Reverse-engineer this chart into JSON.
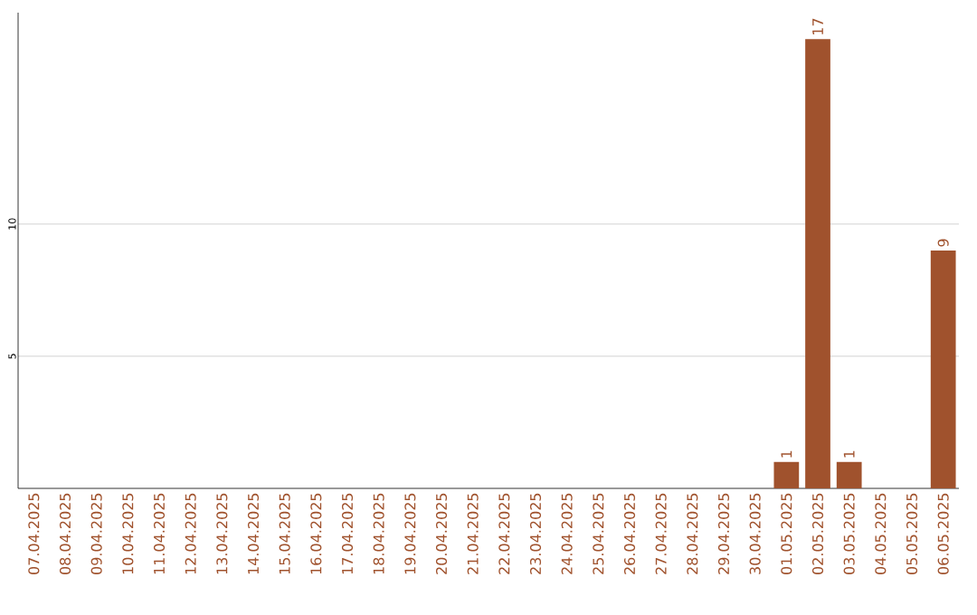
{
  "chart_data": {
    "type": "bar",
    "categories": [
      "07.04.2025",
      "08.04.2025",
      "09.04.2025",
      "10.04.2025",
      "11.04.2025",
      "12.04.2025",
      "13.04.2025",
      "14.04.2025",
      "15.04.2025",
      "16.04.2025",
      "17.04.2025",
      "18.04.2025",
      "19.04.2025",
      "20.04.2025",
      "21.04.2025",
      "22.04.2025",
      "23.04.2025",
      "24.04.2025",
      "25.04.2025",
      "26.04.2025",
      "27.04.2025",
      "28.04.2025",
      "29.04.2025",
      "30.04.2025",
      "01.05.2025",
      "02.05.2025",
      "03.05.2025",
      "04.05.2025",
      "05.05.2025",
      "06.05.2025"
    ],
    "values": [
      0,
      0,
      0,
      0,
      0,
      0,
      0,
      0,
      0,
      0,
      0,
      0,
      0,
      0,
      0,
      0,
      0,
      0,
      0,
      0,
      0,
      0,
      0,
      0,
      1,
      17,
      1,
      0,
      0,
      9
    ],
    "value_labels": [
      null,
      null,
      null,
      null,
      null,
      null,
      null,
      null,
      null,
      null,
      null,
      null,
      null,
      null,
      null,
      null,
      null,
      null,
      null,
      null,
      null,
      null,
      null,
      null,
      "1",
      "17",
      "1",
      null,
      null,
      "9"
    ],
    "color": "#a0522d",
    "ylim": [
      0,
      18
    ],
    "yticks": [
      5,
      10
    ],
    "grid": "y"
  }
}
